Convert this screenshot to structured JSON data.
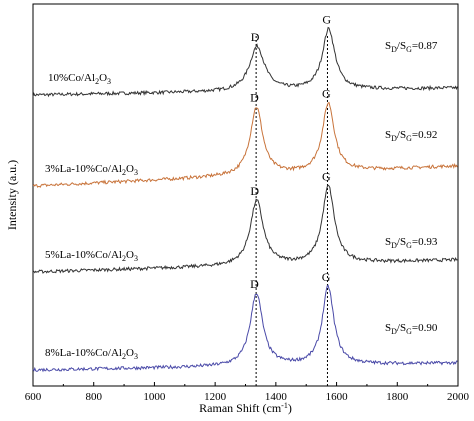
{
  "chart_data": {
    "type": "line",
    "xlabel": "Raman Shift (cm",
    "xlabel_sup": "-1",
    "xlabel_close": ")",
    "ylabel": "Intensity (a.u.)",
    "xlim": [
      600,
      2000
    ],
    "xticks": [
      600,
      800,
      1000,
      1200,
      1400,
      1600,
      1800,
      2000
    ],
    "reference_lines_x": [
      1335,
      1570
    ],
    "series": [
      {
        "label_parts": [
          "10%Co/Al",
          "2",
          "O",
          "3"
        ],
        "ratio_parts": [
          "S",
          "D",
          "/S",
          "G",
          "=0.87"
        ],
        "color": "#333333",
        "peak_labels": [
          "D",
          "G"
        ],
        "baseline_start": 0.05,
        "baseline_end": 0.16,
        "peaks": [
          {
            "x": 1338,
            "height": 0.57,
            "width": 30
          },
          {
            "x": 1574,
            "height": 0.78,
            "width": 25
          }
        ]
      },
      {
        "label_parts": [
          "3%La-10%Co/Al",
          "2",
          "O",
          "3"
        ],
        "ratio_parts": [
          "S",
          "D",
          "/S",
          "G",
          "=0.92"
        ],
        "color": "#c8733a",
        "peak_labels": [
          "D",
          "G"
        ],
        "baseline_start": 0.0,
        "baseline_end": 0.2,
        "peaks": [
          {
            "x": 1336,
            "height": 0.87,
            "width": 25
          },
          {
            "x": 1573,
            "height": 0.88,
            "width": 24
          }
        ]
      },
      {
        "label_parts": [
          "5%La-10%Co/Al",
          "2",
          "O",
          "3"
        ],
        "ratio_parts": [
          "S",
          "D",
          "/S",
          "G",
          "=0.93"
        ],
        "color": "#333333",
        "peak_labels": [
          "D",
          "G"
        ],
        "baseline_start": 0.0,
        "baseline_end": 0.15,
        "peaks": [
          {
            "x": 1337,
            "height": 0.83,
            "width": 26
          },
          {
            "x": 1573,
            "height": 0.99,
            "width": 24
          }
        ]
      },
      {
        "label_parts": [
          "8%La-10%Co/Al",
          "2",
          "O",
          "3"
        ],
        "ratio_parts": [
          "S",
          "D",
          "/S",
          "G",
          "=0.90"
        ],
        "color": "#4a4aa8",
        "peak_labels": [
          "D",
          "G"
        ],
        "baseline_start": 0.0,
        "baseline_end": 0.07,
        "peaks": [
          {
            "x": 1336,
            "height": 0.93,
            "width": 25
          },
          {
            "x": 1572,
            "height": 1.0,
            "width": 23
          }
        ]
      }
    ]
  }
}
